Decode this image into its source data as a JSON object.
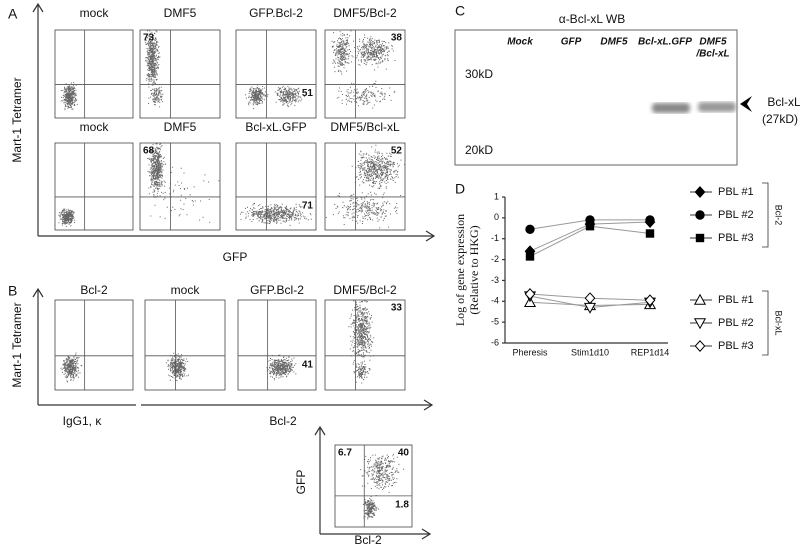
{
  "panel_a": {
    "label": "A",
    "y_axis_label": "Mart-1 Tetramer",
    "x_axis_label": "GFP",
    "plots": [
      {
        "title": "mock",
        "quadrants": []
      },
      {
        "title": "DMF5",
        "quadrants": [
          {
            "value": 73,
            "corner": "top-left"
          }
        ]
      },
      {
        "title": "GFP.Bcl-2",
        "quadrants": [
          {
            "value": 51,
            "corner": "bottom-right"
          }
        ]
      },
      {
        "title": "DMF5/Bcl-2",
        "quadrants": [
          {
            "value": 38,
            "corner": "top-right"
          }
        ]
      },
      {
        "title": "mock",
        "quadrants": []
      },
      {
        "title": "DMF5",
        "quadrants": [
          {
            "value": 68,
            "corner": "top-left"
          }
        ]
      },
      {
        "title": "Bcl-xL.GFP",
        "quadrants": [
          {
            "value": 71,
            "corner": "bottom-right"
          }
        ]
      },
      {
        "title": "DMF5/Bcl-xL",
        "quadrants": [
          {
            "value": 52,
            "corner": "top-right"
          }
        ]
      }
    ]
  },
  "panel_b": {
    "label": "B",
    "y_axis_label": "Mart-1 Tetramer",
    "x_axis_labels": [
      "IgG1, κ",
      "Bcl-2"
    ],
    "plots": [
      {
        "title": "Bcl-2",
        "quadrants": []
      },
      {
        "title": "mock",
        "quadrants": []
      },
      {
        "title": "GFP.Bcl-2",
        "quadrants": [
          {
            "value": 41,
            "corner": "bottom-right"
          }
        ]
      },
      {
        "title": "DMF5/Bcl-2",
        "quadrants": [
          {
            "value": 33,
            "corner": "top-right"
          }
        ]
      }
    ],
    "inset": {
      "y_axis_label": "GFP",
      "x_axis_label": "Bcl-2",
      "quadrants": [
        {
          "value": 6.7,
          "corner": "top-left"
        },
        {
          "value": 40,
          "corner": "top-right"
        },
        {
          "value": 1.8,
          "corner": "bottom-right"
        }
      ]
    }
  },
  "panel_c": {
    "label": "C",
    "title": "α-Bcl-xL WB",
    "lanes": [
      [
        "Mock"
      ],
      [
        "GFP"
      ],
      [
        "DMF5"
      ],
      [
        "Bcl-xL.GFP"
      ],
      [
        "DMF5",
        "/Bcl-xL"
      ]
    ],
    "markers": [
      "30kD",
      "20kD"
    ],
    "band_label": [
      "Bcl-xL",
      "(27kD)"
    ]
  },
  "chart_data": {
    "type": "line",
    "panel": "D",
    "y_label": [
      "Log of gene expression",
      "(Relative to HKG)"
    ],
    "categories": [
      "Pheresis",
      "Stim1d10",
      "REP1d14"
    ],
    "ylim": [
      -6,
      1
    ],
    "yticks": [
      1,
      0,
      -1,
      -2,
      -3,
      -4,
      -5,
      -6
    ],
    "groups": [
      {
        "name": "Bcl-2",
        "series": [
          {
            "name": "PBL #1",
            "marker": "diamond",
            "filled": true,
            "color": "#000000",
            "values": [
              -1.6,
              -0.3,
              -0.2
            ]
          },
          {
            "name": "PBL #2",
            "marker": "circle",
            "filled": true,
            "color": "#000000",
            "values": [
              -0.55,
              -0.1,
              -0.1
            ]
          },
          {
            "name": "PBL #3",
            "marker": "square",
            "filled": true,
            "color": "#000000",
            "values": [
              -1.85,
              -0.4,
              -0.75
            ]
          }
        ]
      },
      {
        "name": "Bcl-xL",
        "series": [
          {
            "name": "PBL #1",
            "marker": "triangle",
            "filled": false,
            "color": "#000000",
            "values": [
              -4.05,
              -4.2,
              -4.15
            ]
          },
          {
            "name": "PBL #2",
            "marker": "triangle-down",
            "filled": false,
            "color": "#000000",
            "values": [
              -3.75,
              -4.3,
              -4.05
            ]
          },
          {
            "name": "PBL #3",
            "marker": "diamond",
            "filled": false,
            "color": "#000000",
            "values": [
              -3.65,
              -3.85,
              -3.95
            ]
          }
        ]
      }
    ]
  }
}
